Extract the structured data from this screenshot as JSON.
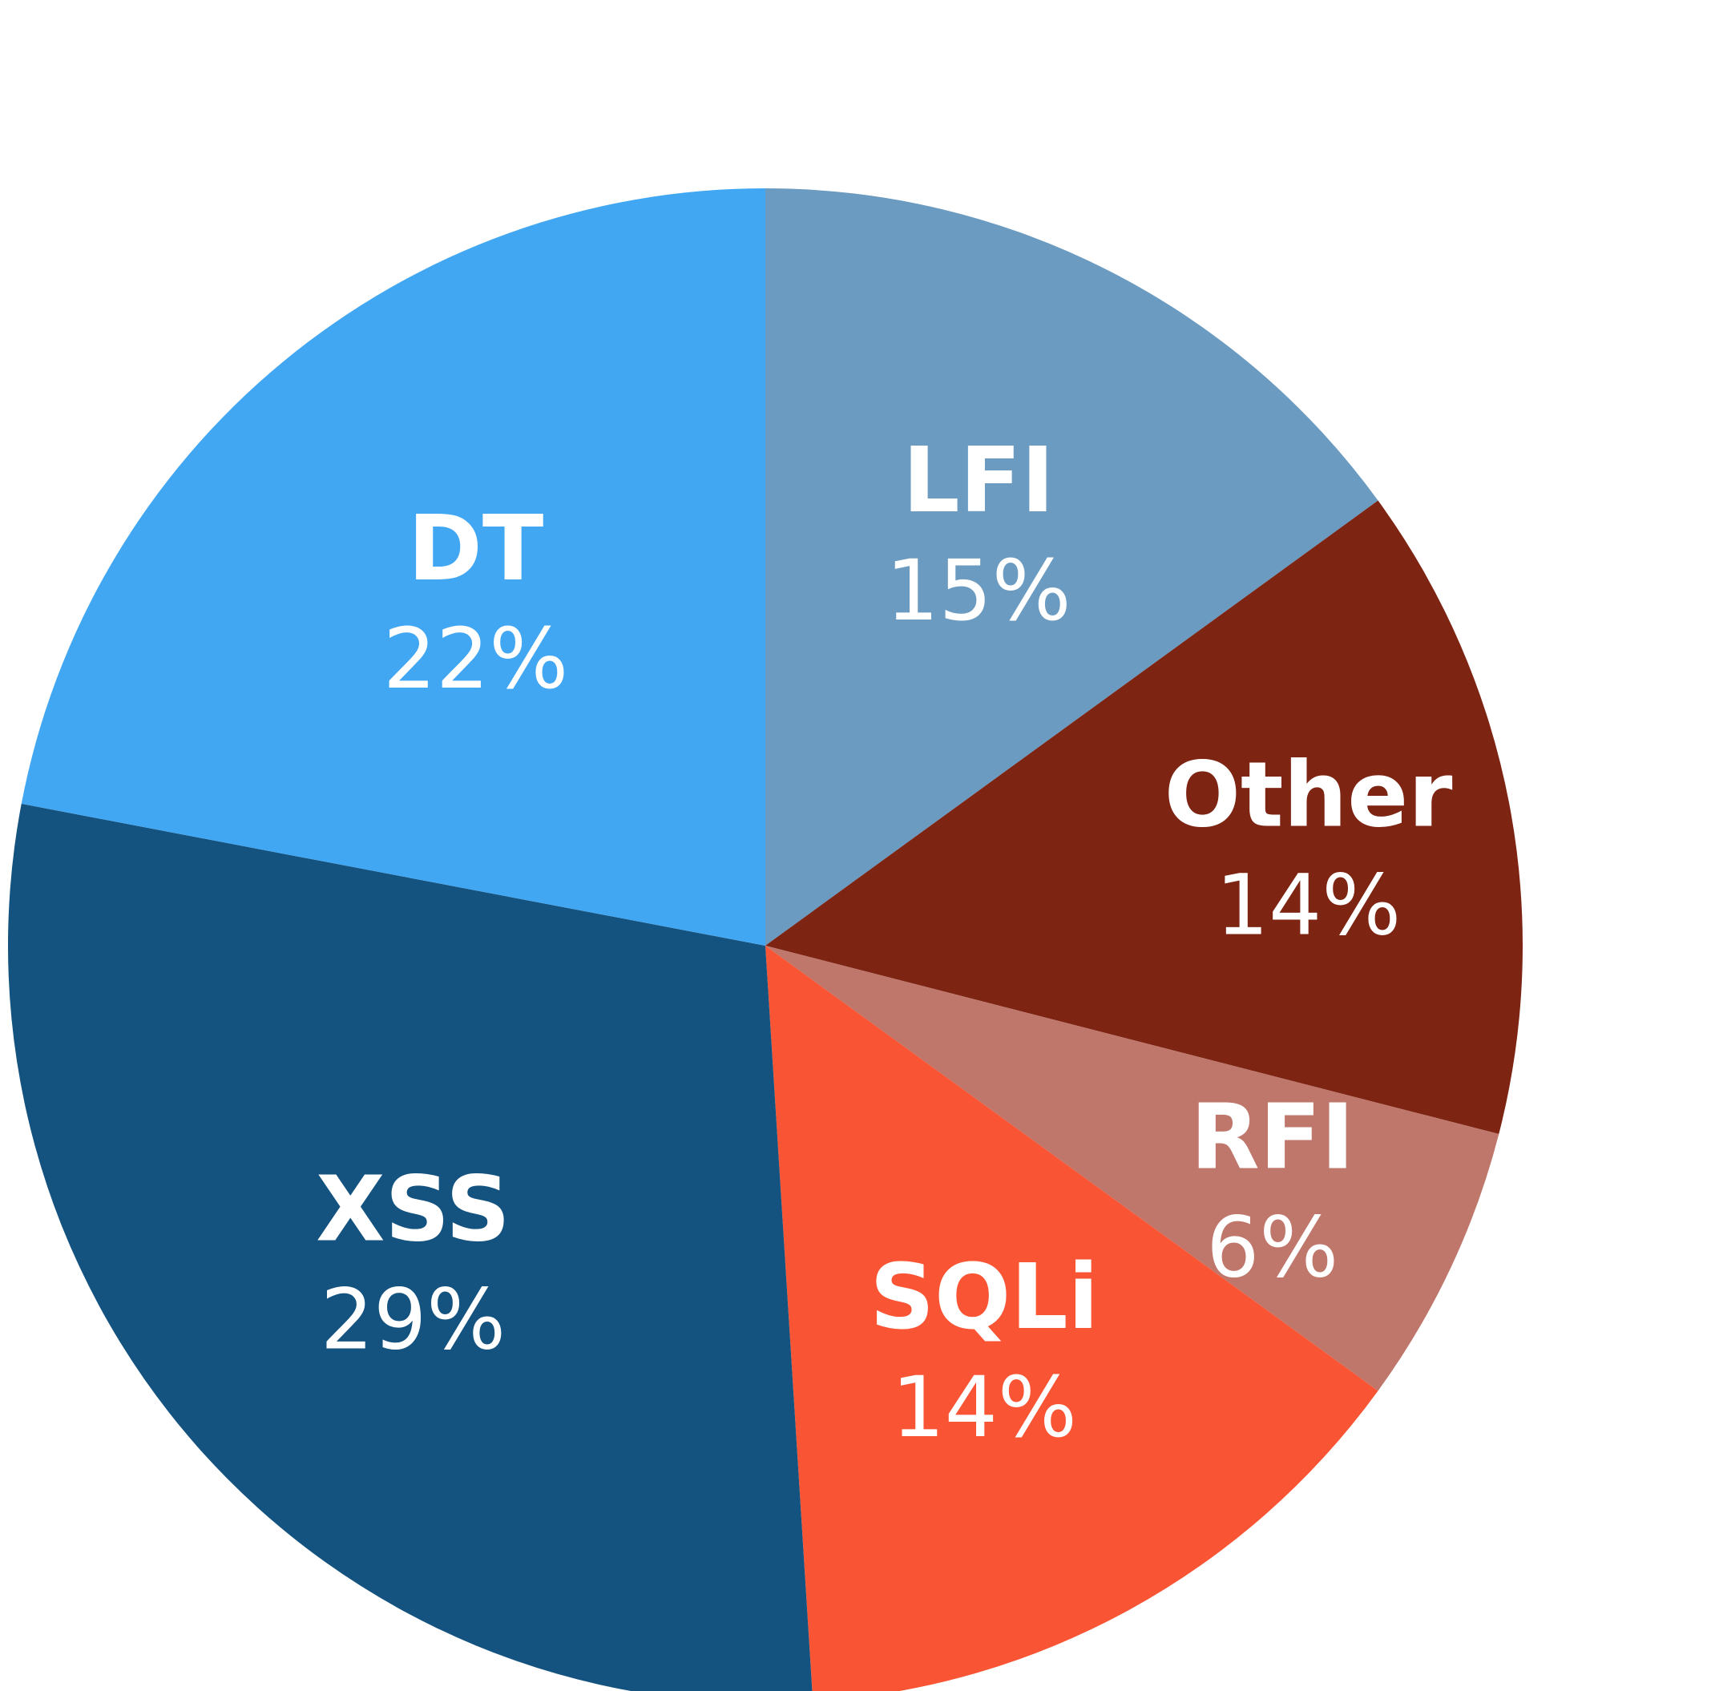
{
  "chart_data": {
    "type": "pie",
    "start_angle_deg": 0,
    "direction": "clockwise",
    "slices": [
      {
        "label": "LFI",
        "value": 15,
        "value_label": "15%",
        "color": "#6b9bc0"
      },
      {
        "label": "Other",
        "value": 14,
        "value_label": "14%",
        "color": "#7d2413"
      },
      {
        "label": "RFI",
        "value": 6,
        "value_label": "6%",
        "color": "#bf776c"
      },
      {
        "label": "SQLi",
        "value": 14,
        "value_label": "14%",
        "color": "#f95535"
      },
      {
        "label": "XSS",
        "value": 29,
        "value_label": "29%",
        "color": "#14537f"
      },
      {
        "label": "DT",
        "value": 22,
        "value_label": "22%",
        "color": "#42a7f3"
      }
    ]
  }
}
